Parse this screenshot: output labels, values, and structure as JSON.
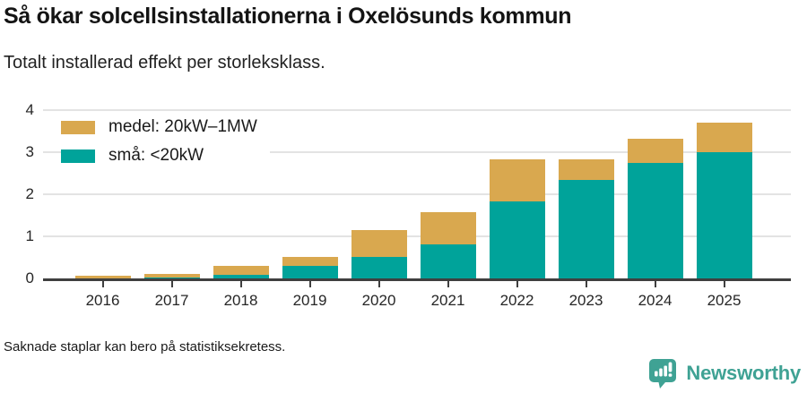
{
  "title": "Så ökar solcellsinstallationerna i Oxelösunds kommun",
  "subtitle": "Totalt installerad effekt per storleksklass.",
  "footnote": "Saknade staplar kan bero på statistiksekretess.",
  "logo": {
    "text": "Newsworthy",
    "color": "#3fa294",
    "icon": "newsworthy-speech-bubble-bars"
  },
  "colors": {
    "medel": "#d9a84f",
    "sma": "#00a39a",
    "axis": "#3f3f3f",
    "grid": "#e3e3e3",
    "text": "#1a1a1a"
  },
  "chart_data": {
    "type": "bar",
    "stacked": true,
    "title": "Så ökar solcellsinstallationerna i Oxelösunds kommun",
    "subtitle": "Totalt installerad effekt per storleksklass.",
    "categories": [
      "2016",
      "2017",
      "2018",
      "2019",
      "2020",
      "2021",
      "2022",
      "2023",
      "2024",
      "2025"
    ],
    "series": [
      {
        "name": "medel: 20kW–1MW",
        "color": "#d9a84f",
        "values": [
          0.07,
          0.08,
          0.21,
          0.21,
          0.62,
          0.76,
          1.0,
          0.48,
          0.57,
          0.71
        ]
      },
      {
        "name": "små: <20kW",
        "color": "#00a39a",
        "values": [
          0.0,
          0.03,
          0.09,
          0.3,
          0.52,
          0.81,
          1.83,
          2.35,
          2.74,
          3.0
        ]
      }
    ],
    "totals": [
      0.07,
      0.11,
      0.3,
      0.51,
      1.14,
      1.57,
      2.83,
      2.83,
      3.31,
      3.71
    ],
    "xlabel": "",
    "ylabel": "",
    "ylim": [
      0,
      4
    ],
    "yticks": [
      0,
      1,
      2,
      3,
      4
    ],
    "grid": true,
    "legend_position": "upper-left"
  }
}
